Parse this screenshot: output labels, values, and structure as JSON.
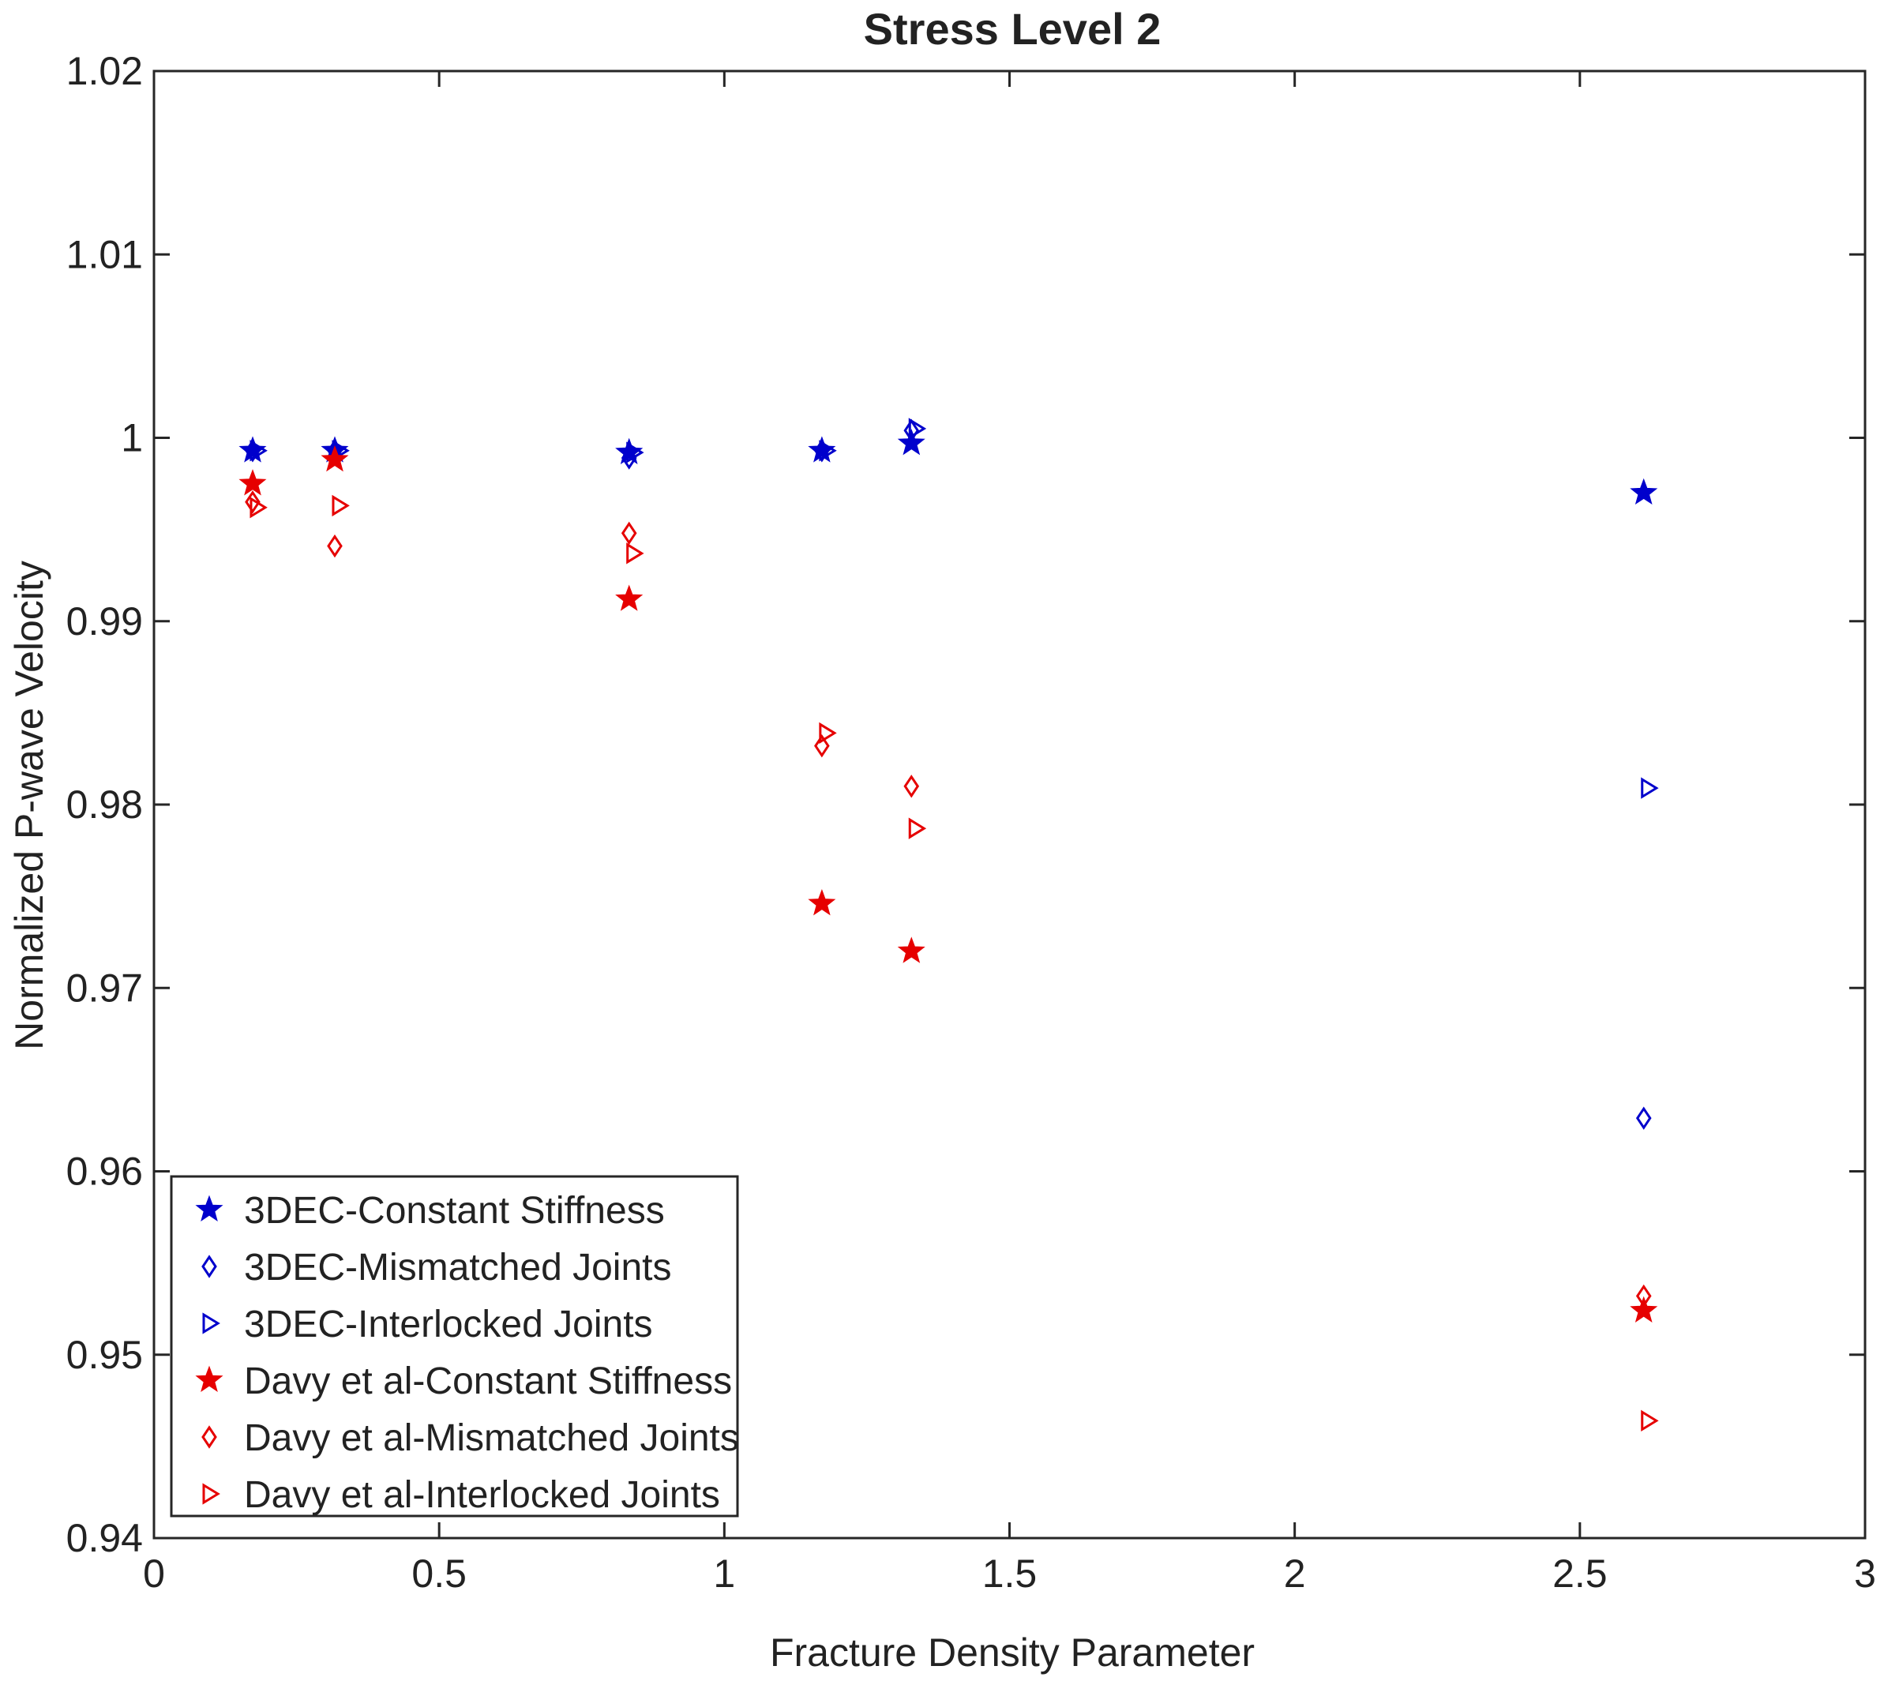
{
  "chart_data": {
    "type": "scatter",
    "title": "Stress Level 2",
    "xlabel": "Fracture Density Parameter",
    "ylabel": "Normalized P-wave Velocity",
    "xlim": [
      0,
      3
    ],
    "ylim": [
      0.94,
      1.02
    ],
    "xticks": [
      0,
      0.5,
      1,
      1.5,
      2,
      2.5,
      3
    ],
    "xtick_labels": [
      "0",
      "0.5",
      "1",
      "1.5",
      "2",
      "2.5",
      "3"
    ],
    "yticks": [
      0.94,
      0.95,
      0.96,
      0.97,
      0.98,
      0.99,
      1.0,
      1.01,
      1.02
    ],
    "ytick_labels": [
      "0.94",
      "0.95",
      "0.96",
      "0.97",
      "0.98",
      "0.99",
      "1",
      "1.01",
      "1.02"
    ],
    "grid": false,
    "legend_position": "bottom-left",
    "series": [
      {
        "name": "3DEC-Constant Stiffness",
        "marker": "star",
        "color": "#0000cc",
        "x": [
          0.173,
          0.317,
          0.833,
          1.171,
          1.328,
          2.612
        ],
        "y": [
          0.9993,
          0.9993,
          0.9992,
          0.9993,
          0.9997,
          0.997
        ]
      },
      {
        "name": "3DEC-Mismatched Joints",
        "marker": "diamond",
        "color": "#0000cc",
        "x": [
          0.173,
          0.317,
          0.833,
          1.171,
          1.328,
          2.612
        ],
        "y": [
          0.9993,
          0.9993,
          0.9989,
          0.9993,
          1.0004,
          0.9629
        ]
      },
      {
        "name": "3DEC-Interlocked Joints",
        "marker": "triangle-right",
        "color": "#0000cc",
        "x": [
          0.173,
          0.317,
          0.833,
          1.171,
          1.328,
          2.612
        ],
        "y": [
          0.9993,
          0.9993,
          0.9992,
          0.9993,
          1.0005,
          0.9809
        ]
      },
      {
        "name": "Davy et al-Constant Stiffness",
        "marker": "star",
        "color": "#e60000",
        "x": [
          0.173,
          0.317,
          0.833,
          1.171,
          1.328,
          2.612
        ],
        "y": [
          0.9975,
          0.9988,
          0.9912,
          0.9746,
          0.972,
          0.9524
        ]
      },
      {
        "name": "Davy et al-Mismatched Joints",
        "marker": "diamond",
        "color": "#e60000",
        "x": [
          0.173,
          0.317,
          0.833,
          1.171,
          1.328,
          2.612
        ],
        "y": [
          0.9965,
          0.9941,
          0.9948,
          0.9832,
          0.981,
          0.9532
        ]
      },
      {
        "name": "Davy et al-Interlocked Joints",
        "marker": "triangle-right",
        "color": "#e60000",
        "x": [
          0.173,
          0.317,
          0.833,
          1.171,
          1.328,
          2.612
        ],
        "y": [
          0.9962,
          0.9963,
          0.9937,
          0.9839,
          0.9787,
          0.9464
        ]
      }
    ]
  }
}
